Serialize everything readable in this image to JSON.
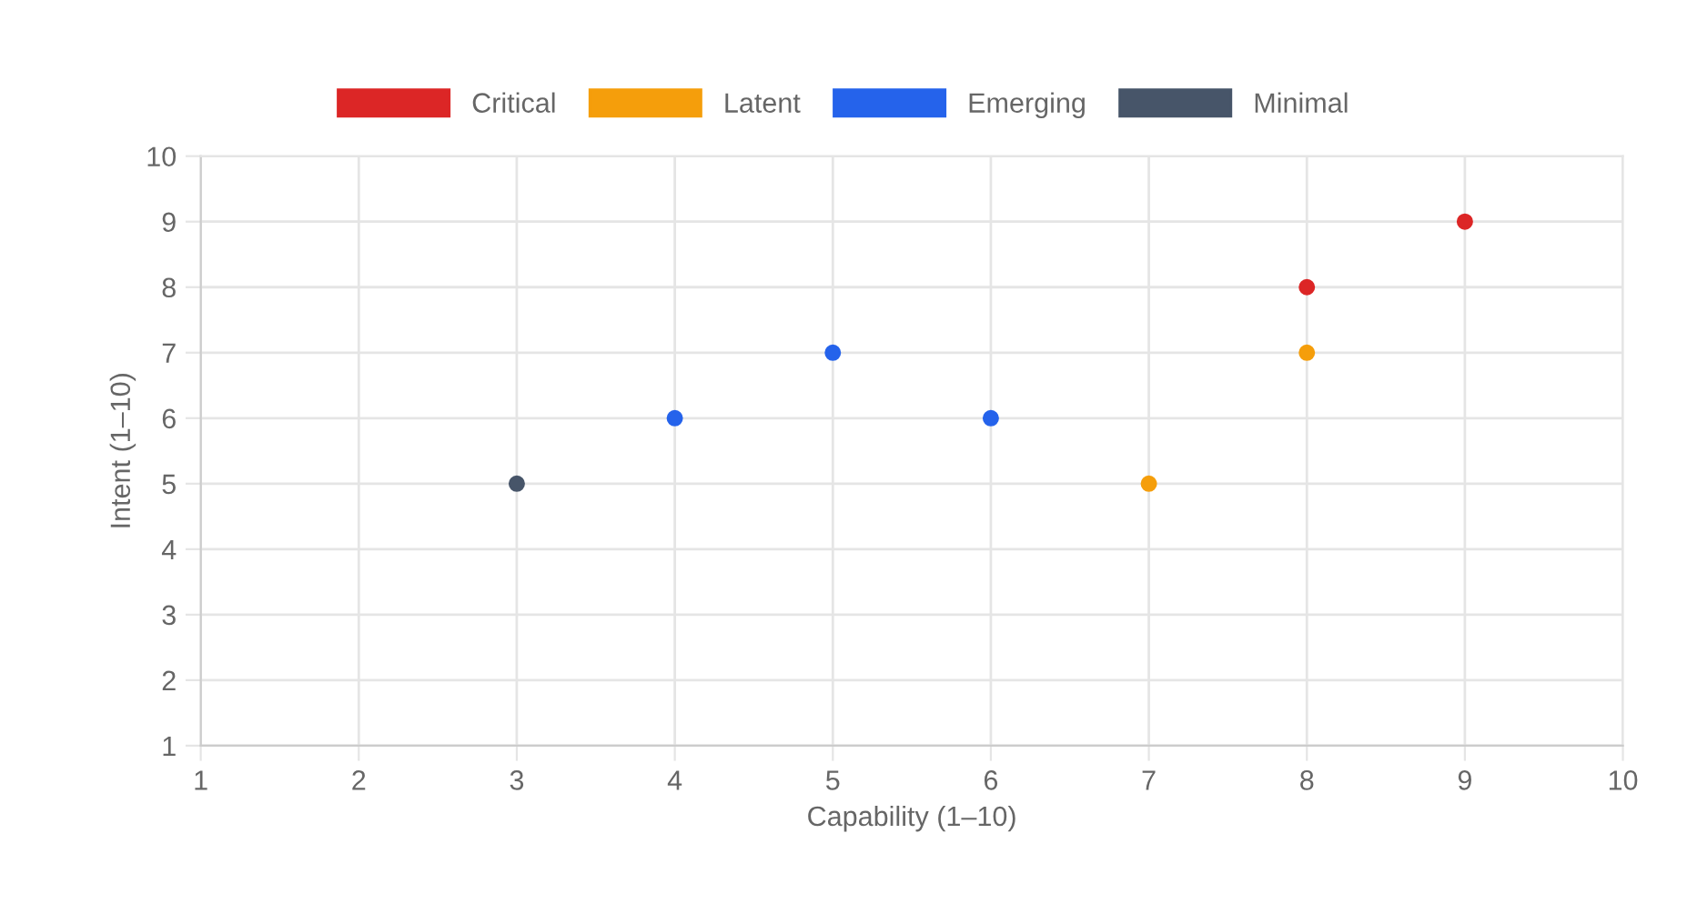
{
  "chart_data": {
    "type": "scatter",
    "xlabel": "Capability (1–10)",
    "ylabel": "Intent (1–10)",
    "xlim": [
      1,
      10
    ],
    "ylim": [
      1,
      10
    ],
    "xticks": [
      1,
      2,
      3,
      4,
      5,
      6,
      7,
      8,
      9,
      10
    ],
    "yticks": [
      1,
      2,
      3,
      4,
      5,
      6,
      7,
      8,
      9,
      10
    ],
    "grid": true,
    "legend": "top",
    "marker": "circle",
    "series": [
      {
        "name": "Critical",
        "color": "#dc2626",
        "x": [
          8,
          9
        ],
        "values": [
          8,
          9
        ]
      },
      {
        "name": "Latent",
        "color": "#f59e0b",
        "x": [
          7,
          8
        ],
        "values": [
          5,
          7
        ]
      },
      {
        "name": "Emerging",
        "color": "#2563eb",
        "x": [
          4,
          5,
          6
        ],
        "values": [
          6,
          7,
          6
        ]
      },
      {
        "name": "Minimal",
        "color": "#475569",
        "x": [
          3
        ],
        "values": [
          5
        ]
      }
    ]
  }
}
